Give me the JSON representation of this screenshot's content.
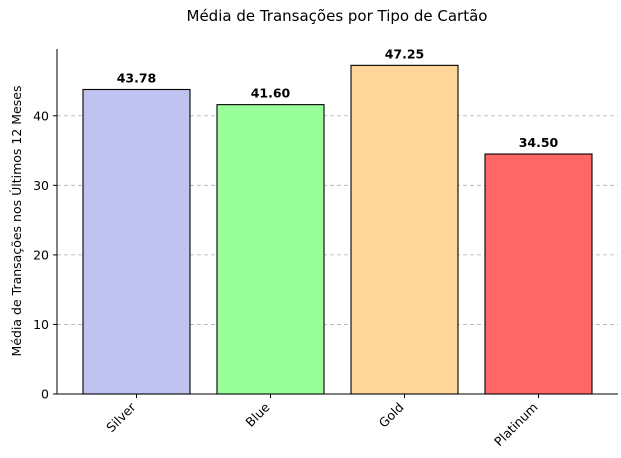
{
  "chart_data": {
    "type": "bar",
    "title": "Média de Transações por Tipo de Cartão",
    "xlabel": "",
    "ylabel": "Média de Transações nos Últimos 12 Meses",
    "categories": [
      "Silver",
      "Blue",
      "Gold",
      "Platinum"
    ],
    "values": [
      43.78,
      41.6,
      47.25,
      34.5
    ],
    "value_labels": [
      "43.78",
      "41.60",
      "47.25",
      "34.50"
    ],
    "colors": [
      "#c0c2f0",
      "#99ff99",
      "#ffd699",
      "#ff6666"
    ],
    "ylim": [
      0,
      49.6
    ],
    "yticks": [
      0,
      10,
      20,
      30,
      40
    ],
    "ytick_labels": [
      "0",
      "10",
      "20",
      "30",
      "40"
    ],
    "grid": "y-dashed",
    "legend": "none"
  }
}
